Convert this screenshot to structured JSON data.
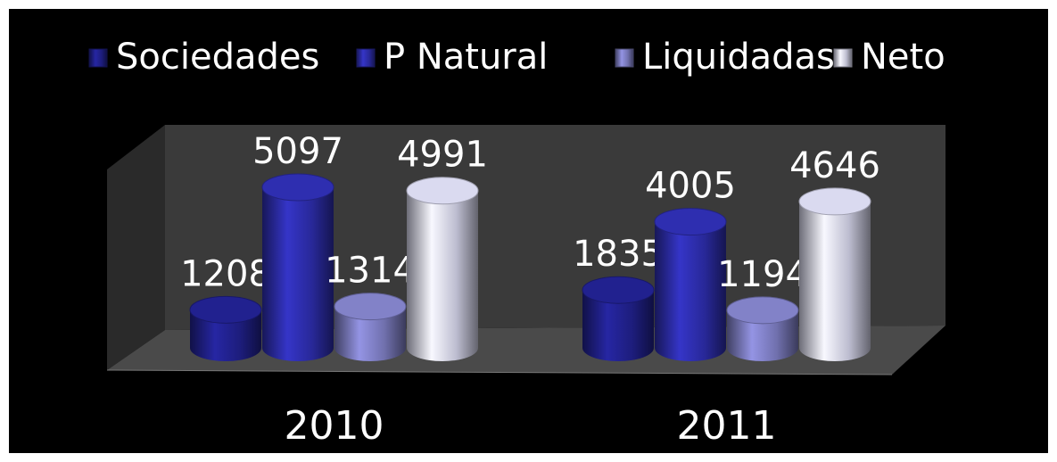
{
  "chart_data": {
    "type": "bar3d",
    "categories": [
      "2010",
      "2011"
    ],
    "series": [
      {
        "name": "Sociedades",
        "color": "#1e1e82",
        "values": [
          1208,
          1835
        ]
      },
      {
        "name": "P Natural",
        "color": "#2a2aa0",
        "values": [
          5097,
          4005
        ]
      },
      {
        "name": "Liquidadas",
        "color": "#7676b6",
        "values": [
          1314,
          1194
        ]
      },
      {
        "name": "Neto",
        "color": "#c6c6da",
        "values": [
          4991,
          4646
        ]
      }
    ]
  }
}
